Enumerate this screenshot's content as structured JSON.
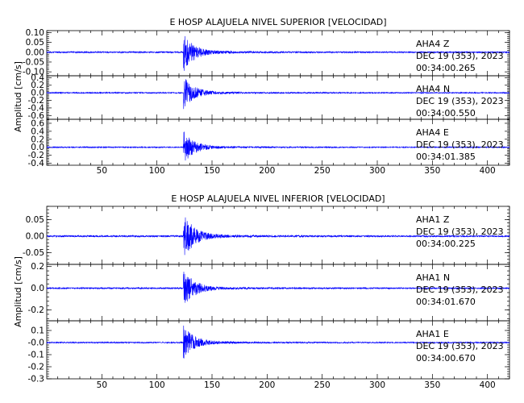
{
  "chart_data": [
    {
      "type": "line",
      "title": "E HOSP ALAJUELA NIVEL SUPERIOR [VELOCIDAD]",
      "ylabel": "Amplitud [cm/s]",
      "xlabel": "",
      "xlim": [
        0,
        420
      ],
      "xticks": [
        "50",
        "100",
        "150",
        "200",
        "250",
        "300",
        "350",
        "400"
      ],
      "onset": 124,
      "line_color": "#0000ff",
      "panels": [
        {
          "name": "AHA4 Z",
          "station": "AHA4",
          "component": "Z",
          "date": "DEC 19 (353), 2023",
          "time": "00:34:00.265",
          "ylim": [
            -0.12,
            0.11
          ],
          "yticks": [
            "0.10",
            "0.05",
            "0.00",
            "-0.05",
            "-0.10"
          ],
          "peak": 0.1
        },
        {
          "name": "AHA4 N",
          "station": "AHA4",
          "component": "N",
          "date": "DEC 19 (353), 2023",
          "time": "00:34:00.550",
          "ylim": [
            -0.7,
            0.45
          ],
          "yticks": [
            "0.4",
            "0.2",
            "0.0",
            "-0.2",
            "-0.4",
            "-0.6"
          ],
          "peak": 0.42
        },
        {
          "name": "AHA4 E",
          "station": "AHA4",
          "component": "E",
          "date": "DEC 19 (353), 2023",
          "time": "00:34:01.385",
          "ylim": [
            -0.45,
            0.7
          ],
          "yticks": [
            "0.6",
            "0.4",
            "0.2",
            "0.0",
            "-0.2",
            "-0.4"
          ],
          "peak": 0.4
        }
      ]
    },
    {
      "type": "line",
      "title": "E HOSP ALAJUELA NIVEL INFERIOR [VELOCIDAD]",
      "ylabel": "Amplitud [cm/s]",
      "xlabel": "",
      "xlim": [
        0,
        420
      ],
      "xticks": [
        "50",
        "100",
        "150",
        "200",
        "250",
        "300",
        "350",
        "400"
      ],
      "onset": 124,
      "line_color": "#0000ff",
      "panels": [
        {
          "name": "AHA1 Z",
          "station": "AHA1",
          "component": "Z",
          "date": "DEC 19 (353), 2023",
          "time": "00:34:00.225",
          "ylim": [
            -0.085,
            0.09
          ],
          "yticks": [
            "0.05",
            "0.00",
            "-0.05"
          ],
          "peak": 0.07
        },
        {
          "name": "AHA1 N",
          "station": "AHA1",
          "component": "N",
          "date": "DEC 19 (353), 2023",
          "time": "00:34:01.670",
          "ylim": [
            -0.3,
            0.22
          ],
          "yticks": [
            "0.2",
            "0.0",
            "-0.2"
          ],
          "peak": 0.18
        },
        {
          "name": "AHA1 E",
          "station": "AHA1",
          "component": "E",
          "date": "DEC 19 (353), 2023",
          "time": "00:34:00.670",
          "ylim": [
            -0.3,
            0.18
          ],
          "yticks": [
            "0.1",
            "-0.0",
            "-0.1",
            "-0.2",
            "-0.3"
          ],
          "peak": 0.14
        }
      ]
    }
  ]
}
